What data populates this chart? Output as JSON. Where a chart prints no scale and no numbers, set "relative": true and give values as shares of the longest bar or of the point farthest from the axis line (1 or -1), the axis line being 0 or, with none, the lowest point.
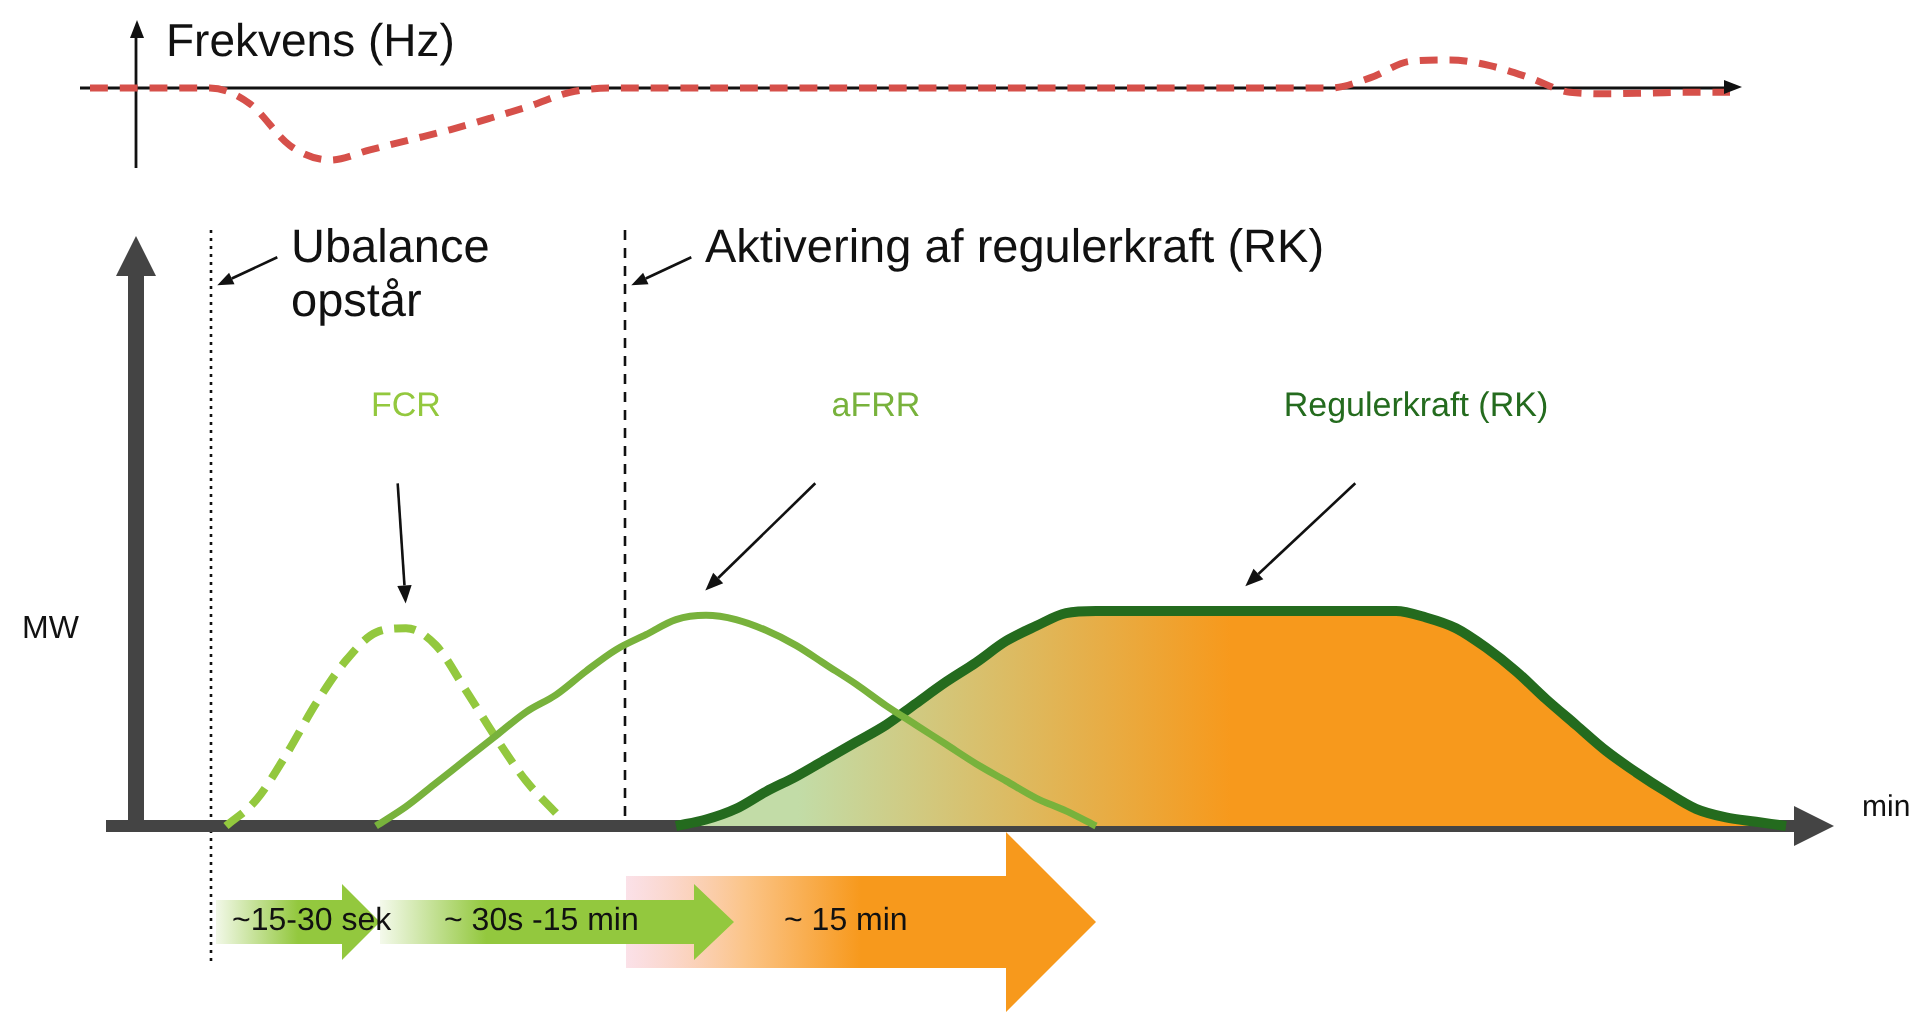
{
  "chart_data": [
    {
      "type": "line",
      "ylabel": "Frekvens (Hz)",
      "relative": true,
      "line_style": "dashed",
      "categories": [
        null,
        null,
        null,
        null,
        null,
        null,
        null,
        null,
        null,
        null,
        null,
        null,
        null,
        null,
        null,
        null,
        null,
        null,
        null,
        null,
        null,
        null,
        null,
        null,
        null,
        null,
        null,
        null,
        null,
        null,
        null,
        null,
        null,
        null,
        null,
        null,
        null,
        null,
        null,
        null,
        null,
        null
      ],
      "color": "#d6504a",
      "values": [
        0,
        0,
        0,
        0,
        -0.22,
        -0.8,
        -1,
        -0.86,
        -0.72,
        -0.58,
        -0.42,
        -0.25,
        -0.06,
        0,
        0,
        0,
        0,
        0,
        0,
        0,
        0,
        0,
        0,
        0,
        0,
        0,
        0,
        0,
        0,
        0,
        0,
        0,
        0.14,
        0.37,
        0.39,
        0.31,
        0.14,
        -0.06,
        -0.08,
        -0.07,
        -0.06,
        -0.06
      ]
    },
    {
      "type": "line",
      "xlabel": "min",
      "ylabel": "MW",
      "relative": true,
      "categories": [
        null,
        null,
        null,
        null,
        null,
        null,
        null,
        null,
        null,
        null,
        null,
        null,
        null,
        null,
        null,
        null,
        null,
        null,
        null,
        null,
        null,
        null,
        null,
        null,
        null,
        null,
        null,
        null,
        null,
        null,
        null,
        null,
        null,
        null,
        null,
        null,
        null,
        null,
        null,
        null,
        null,
        null,
        null,
        null,
        null,
        null,
        null,
        null,
        null,
        null,
        null,
        null,
        null,
        null,
        null,
        null,
        null
      ],
      "series": [
        {
          "name": "FCR",
          "color": "#93c83e",
          "line_style": "dashed",
          "values": [
            null,
            null,
            null,
            0,
            0.12,
            0.33,
            0.57,
            0.77,
            0.9,
            0.92,
            0.84,
            0.63,
            0.41,
            0.21,
            0.06,
            null,
            null,
            null,
            null,
            null,
            null,
            null,
            null,
            null,
            null,
            null,
            null,
            null,
            null,
            null,
            null,
            null,
            null,
            null,
            null,
            null,
            null,
            null,
            null,
            null,
            null,
            null,
            null,
            null,
            null,
            null,
            null,
            null,
            null,
            null,
            null,
            null,
            null,
            null,
            null,
            null,
            null
          ]
        },
        {
          "name": "aFRR",
          "color": "#78b23c",
          "values": [
            null,
            null,
            null,
            null,
            null,
            null,
            null,
            null,
            0,
            0.09,
            0.2,
            0.31,
            0.42,
            0.53,
            0.61,
            0.72,
            0.82,
            0.89,
            0.96,
            0.98,
            0.96,
            0.91,
            0.84,
            0.75,
            0.66,
            0.56,
            0.47,
            0.38,
            0.29,
            0.21,
            0.13,
            0.07,
            0,
            null,
            null,
            null,
            null,
            null,
            null,
            null,
            null,
            null,
            null,
            null,
            null,
            null,
            null,
            null,
            null,
            null,
            null,
            null,
            null,
            null,
            null,
            null,
            null
          ]
        },
        {
          "type": "area",
          "name": "Regulerkraft (RK)",
          "color": "#246b1e",
          "values": [
            null,
            null,
            null,
            null,
            null,
            null,
            null,
            null,
            null,
            null,
            null,
            null,
            null,
            null,
            null,
            null,
            null,
            null,
            0,
            0.03,
            0.08,
            0.16,
            0.23,
            0.31,
            0.39,
            0.47,
            0.57,
            0.67,
            0.76,
            0.86,
            0.93,
            0.99,
            1,
            1,
            1,
            1,
            1,
            1,
            1,
            1,
            1,
            1,
            1,
            0.97,
            0.92,
            0.83,
            0.72,
            0.59,
            0.47,
            0.35,
            0.25,
            0.16,
            0.08,
            0.04,
            0.02,
            0,
            null
          ]
        }
      ],
      "annotations": [
        "Ubalance opstår",
        "Aktivering af regulerkraft (RK)",
        "~15-30 sek",
        "~ 30s -15 min",
        "~ 15 min"
      ]
    }
  ]
}
